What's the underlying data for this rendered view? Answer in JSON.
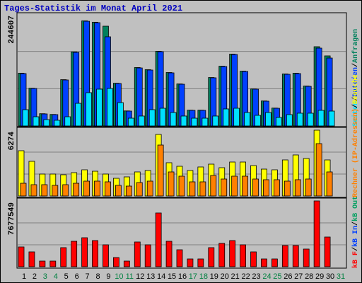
{
  "chart_data": [
    {
      "type": "bar",
      "title": "Tages-Statistik im Monat April 2021",
      "ylim": [
        0,
        244607
      ],
      "yticks": [
        244607
      ],
      "grid_divisions": 3,
      "legend_separator": "/",
      "series": [
        {
          "name": "Seiten",
          "color": "#00e0ff",
          "values": [
            35600,
            20100,
            13900,
            12400,
            20100,
            49500,
            72800,
            80500,
            82000,
            51100,
            17000,
            21700,
            35600,
            38700,
            29400,
            21700,
            17000,
            17000,
            21700,
            37200,
            38700,
            29400,
            23200,
            29400,
            18600,
            24800,
            27900,
            27900,
            34100,
            32500,
            null
          ]
        },
        {
          "name": "Dateien",
          "color": "#0040ff",
          "values": [
            114600,
            82000,
            26300,
            24800,
            100600,
            161000,
            229100,
            226000,
            195100,
            92900,
            32500,
            126900,
            122300,
            162500,
            116100,
            91300,
            34100,
            34100,
            105300,
            130000,
            156400,
            119200,
            80500,
            54200,
            38700,
            113000,
            114600,
            86700,
            170300,
            148600,
            null
          ]
        },
        {
          "name": "Anfragen",
          "color": "#00805c",
          "values": [
            115500,
            82600,
            26800,
            25200,
            101300,
            162000,
            230000,
            227000,
            218300,
            93500,
            32900,
            127800,
            123100,
            163400,
            116900,
            91900,
            34500,
            34500,
            106000,
            130800,
            157300,
            120000,
            81000,
            54700,
            39100,
            113800,
            115400,
            87300,
            173400,
            153300,
            null
          ]
        }
      ]
    },
    {
      "type": "bar",
      "ylim": [
        0,
        6274
      ],
      "yticks": [
        6274
      ],
      "grid_divisions": 3,
      "legend_separator": "/",
      "series": [
        {
          "name": "Rechner (IP-Adressen)",
          "color": "#ff8000",
          "values": [
            1214,
            1079,
            1079,
            1012,
            1079,
            1214,
            1417,
            1417,
            1349,
            1012,
            944,
            1282,
            1417,
            4857,
            2294,
            1889,
            1349,
            1349,
            1956,
            1619,
            1889,
            1889,
            1619,
            1552,
            1552,
            1417,
            1552,
            1619,
            4992,
            2294,
            null
          ]
        },
        {
          "name": "Besuche",
          "color": "#ffff00",
          "values": [
            4317,
            3306,
            2091,
            2091,
            2024,
            2226,
            2496,
            2361,
            2091,
            1686,
            1821,
            2294,
            2429,
            5869,
            3171,
            2833,
            2429,
            2766,
            3036,
            2698,
            3238,
            3238,
            2901,
            2563,
            2496,
            3440,
            3913,
            3575,
            6274,
            3440,
            null
          ]
        }
      ]
    },
    {
      "type": "bar",
      "ylim": [
        0,
        7677549
      ],
      "yticks": [
        7677549
      ],
      "grid_divisions": 3,
      "legend_separator": "/",
      "categories": [
        "1",
        "2",
        "3",
        "4",
        "5",
        "6",
        "7",
        "8",
        "9",
        "10",
        "11",
        "12",
        "13",
        "14",
        "15",
        "16",
        "17",
        "18",
        "19",
        "20",
        "21",
        "22",
        "23",
        "24",
        "25",
        "26",
        "27",
        "28",
        "29",
        "30",
        "31"
      ],
      "category_colors": [
        "#000000",
        "#000000",
        "#008040",
        "#008040",
        "#000000",
        "#000000",
        "#000000",
        "#000000",
        "#000000",
        "#008040",
        "#008040",
        "#000000",
        "#000000",
        "#000000",
        "#000000",
        "#000000",
        "#008040",
        "#008040",
        "#000000",
        "#000000",
        "#000000",
        "#000000",
        "#000000",
        "#008040",
        "#008040",
        "#000000",
        "#000000",
        "#000000",
        "#000000",
        "#000000",
        "#008040"
      ],
      "series": [
        {
          "name": "kB F",
          "color": "#ff0000",
          "values": [
            2311500,
            1733600,
            660400,
            660400,
            2229000,
            2972000,
            3384700,
            3054500,
            2559200,
            1073200,
            660400,
            2889400,
            2559200,
            6274100,
            2972000,
            1981300,
            908100,
            908100,
            2229000,
            2724300,
            3054500,
            2559200,
            1733600,
            908100,
            908100,
            2476600,
            2476600,
            2063900,
            7677549,
            3467300,
            null
          ]
        }
      ],
      "legend_extra": [
        {
          "name": "kB In",
          "color": "#0040ff"
        },
        {
          "name": "kB Out",
          "color": "#00a060"
        }
      ]
    }
  ]
}
